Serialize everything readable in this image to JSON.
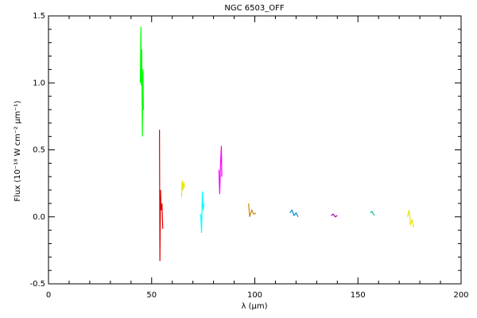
{
  "chart_data": {
    "type": "line",
    "title": "NGC 6503_OFF",
    "x_label": "λ (μm)",
    "y_label": "Flux (10⁻¹⁸ W cm⁻² μm⁻¹)",
    "xlim": [
      0,
      200
    ],
    "xticks": [
      0,
      50,
      100,
      150,
      200
    ],
    "ylim": [
      -0.5,
      1.5
    ],
    "yticks": [
      -0.5,
      {
        "value": 0,
        "label": "0.0"
      },
      0.5,
      {
        "value": 1,
        "label": "1.0"
      },
      1.5
    ],
    "series": [
      {
        "color": "#00ff00",
        "x": [
          44.5,
          44.8,
          45.0,
          45.2,
          45.5,
          45.8,
          46.0
        ],
        "values": [
          1.0,
          1.42,
          0.98,
          1.25,
          0.6,
          1.1,
          0.8
        ]
      },
      {
        "color": "#e00000",
        "x": [
          53.8,
          54.0,
          54.3,
          54.6,
          55.0,
          55.4
        ],
        "values": [
          0.65,
          -0.33,
          0.2,
          0.05,
          0.1,
          -0.09
        ]
      },
      {
        "color": "#e6e600",
        "x": [
          64.5,
          64.8,
          65.2,
          65.6,
          66.0
        ],
        "values": [
          0.15,
          0.27,
          0.2,
          0.26,
          0.22
        ]
      },
      {
        "color": "#00ffff",
        "x": [
          73.8,
          74.2,
          74.6,
          75.0,
          75.3
        ],
        "values": [
          0.02,
          -0.12,
          0.19,
          0.05,
          0.1
        ]
      },
      {
        "color": "#ff00ff",
        "x": [
          82.6,
          83.0,
          83.4,
          83.8,
          84.0
        ],
        "values": [
          0.35,
          0.17,
          0.4,
          0.53,
          0.3
        ]
      },
      {
        "color": "#cc8800",
        "x": [
          97.0,
          97.5,
          98.5,
          99.5,
          100.5
        ],
        "values": [
          0.1,
          0.0,
          0.05,
          0.02,
          0.03
        ]
      },
      {
        "color": "#0088cc",
        "x": [
          117.0,
          118.0,
          119.0,
          120.0,
          121.0
        ],
        "values": [
          0.03,
          0.05,
          0.01,
          0.03,
          0.0
        ]
      },
      {
        "color": "#a000a0",
        "x": [
          137.0,
          138.0,
          139.0,
          140.0
        ],
        "values": [
          0.01,
          0.02,
          0.0,
          0.01
        ]
      },
      {
        "color": "#00c0a0",
        "x": [
          156.0,
          156.8,
          157.5,
          158.0
        ],
        "values": [
          0.03,
          0.04,
          0.02,
          0.01
        ]
      },
      {
        "color": "#e6e600",
        "x": [
          174.0,
          174.8,
          175.5,
          176.2,
          177.0
        ],
        "values": [
          0.0,
          0.05,
          -0.06,
          -0.02,
          -0.08
        ]
      }
    ]
  }
}
